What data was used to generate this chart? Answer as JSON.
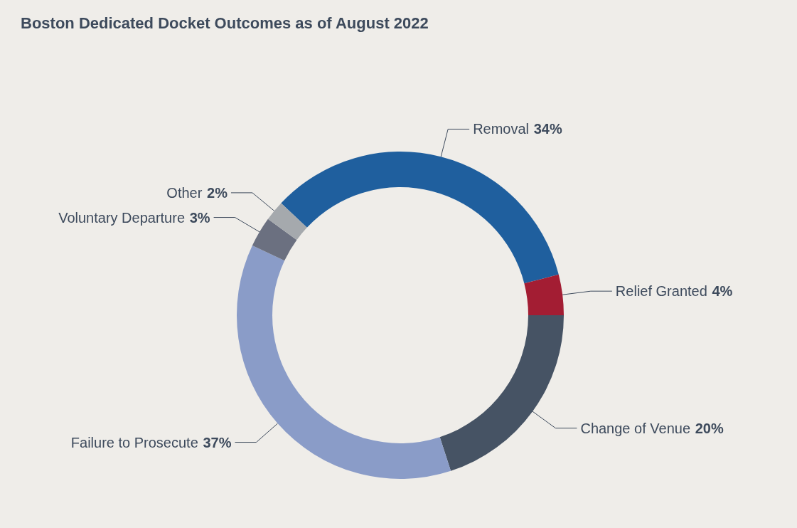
{
  "chart_data": {
    "type": "donut",
    "title": "Boston Dedicated Docket Outcomes as of August 2022",
    "categories": [
      "Removal",
      "Relief Granted",
      "Change of Venue",
      "Failure to Prosecute",
      "Voluntary Departure",
      "Other"
    ],
    "values": [
      34,
      4,
      20,
      37,
      3,
      2
    ],
    "value_labels": [
      "34%",
      "4%",
      "20%",
      "37%",
      "3%",
      "2%"
    ],
    "colors": [
      "#1f5f9e",
      "#a31d33",
      "#465364",
      "#8a9cc8",
      "#6b7080",
      "#a5a9ad"
    ],
    "legend": false
  }
}
